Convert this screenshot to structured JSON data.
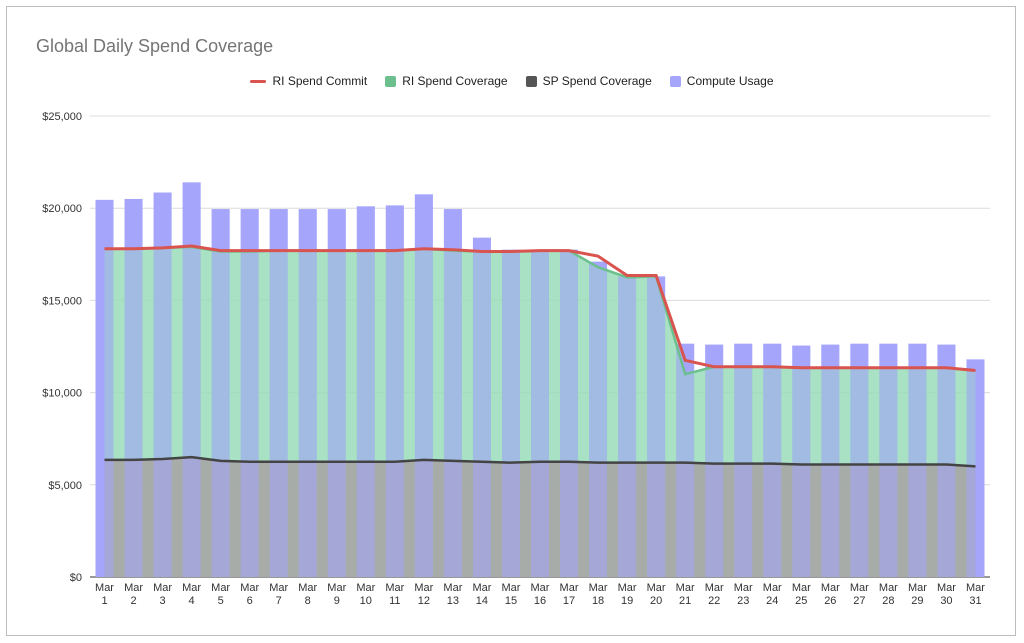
{
  "chart_data": {
    "type": "bar",
    "title": "Global Daily Spend Coverage",
    "xlabel": "",
    "ylabel": "",
    "ylim": [
      0,
      25000
    ],
    "yticks": [
      "$0",
      "$5,000",
      "$10,000",
      "$15,000",
      "$20,000",
      "$25,000"
    ],
    "ytick_values": [
      0,
      5000,
      10000,
      15000,
      20000,
      25000
    ],
    "grid": true,
    "legend_position": "top",
    "categories_line1": [
      "Mar",
      "Mar",
      "Mar",
      "Mar",
      "Mar",
      "Mar",
      "Mar",
      "Mar",
      "Mar",
      "Mar",
      "Mar",
      "Mar",
      "Mar",
      "Mar",
      "Mar",
      "Mar",
      "Mar",
      "Mar",
      "Mar",
      "Mar",
      "Mar",
      "Mar",
      "Mar",
      "Mar",
      "Mar",
      "Mar",
      "Mar",
      "Mar",
      "Mar",
      "Mar",
      "Mar"
    ],
    "categories_line2": [
      "1",
      "2",
      "3",
      "4",
      "5",
      "6",
      "7",
      "8",
      "9",
      "10",
      "11",
      "12",
      "13",
      "14",
      "15",
      "16",
      "17",
      "18",
      "19",
      "20",
      "21",
      "22",
      "23",
      "24",
      "25",
      "26",
      "27",
      "28",
      "29",
      "30",
      "31"
    ],
    "series": [
      {
        "name": "RI Spend Commit",
        "kind": "line",
        "color": "#d9534f",
        "values": [
          17800,
          17800,
          17850,
          17950,
          17700,
          17700,
          17700,
          17700,
          17700,
          17700,
          17700,
          17800,
          17750,
          17650,
          17650,
          17700,
          17700,
          17400,
          16350,
          16350,
          11750,
          11400,
          11400,
          11400,
          11350,
          11350,
          11350,
          11350,
          11350,
          11350,
          11200
        ]
      },
      {
        "name": "RI Spend Coverage",
        "kind": "area",
        "color": "#99dcb8",
        "line_color": "#6cc08d",
        "values": [
          17800,
          17800,
          17850,
          17900,
          17650,
          17650,
          17700,
          17700,
          17700,
          17700,
          17700,
          17800,
          17700,
          17650,
          17650,
          17700,
          17700,
          16800,
          16250,
          16300,
          11000,
          11400,
          11400,
          11400,
          11350,
          11350,
          11350,
          11350,
          11350,
          11350,
          11200
        ]
      },
      {
        "name": "SP Spend Coverage",
        "kind": "area",
        "color": "#a6a6a6",
        "line_color": "#444444",
        "values": [
          6350,
          6350,
          6400,
          6500,
          6300,
          6250,
          6250,
          6250,
          6250,
          6250,
          6250,
          6350,
          6300,
          6250,
          6200,
          6250,
          6250,
          6200,
          6200,
          6200,
          6200,
          6150,
          6150,
          6150,
          6100,
          6100,
          6100,
          6100,
          6100,
          6100,
          6000
        ]
      },
      {
        "name": "Compute Usage",
        "kind": "bar",
        "color": "#a5a5fb",
        "values": [
          20450,
          20500,
          20850,
          21400,
          19950,
          19950,
          19950,
          19950,
          19950,
          20100,
          20150,
          20750,
          19950,
          18400,
          17750,
          17750,
          17750,
          17100,
          16300,
          16300,
          12650,
          12600,
          12650,
          12650,
          12550,
          12600,
          12650,
          12650,
          12650,
          12600,
          11800
        ]
      }
    ]
  }
}
